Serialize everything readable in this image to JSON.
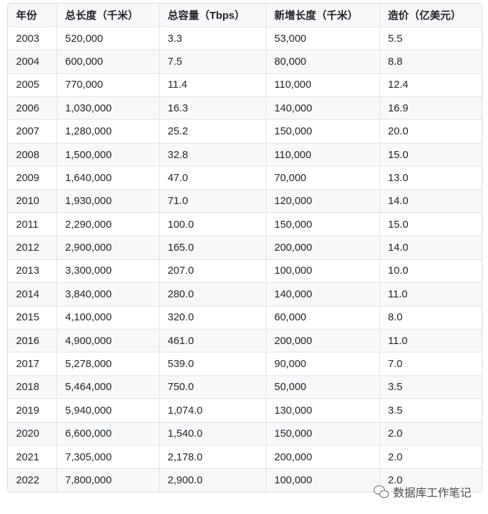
{
  "table": {
    "headers": [
      "年份",
      "总长度（千米）",
      "总容量（Tbps）",
      "新增长度（千米）",
      "造价（亿美元）"
    ],
    "rows": [
      [
        "2003",
        "520,000",
        "3.3",
        "53,000",
        "5.5"
      ],
      [
        "2004",
        "600,000",
        "7.5",
        "80,000",
        "8.8"
      ],
      [
        "2005",
        "770,000",
        "11.4",
        "110,000",
        "12.4"
      ],
      [
        "2006",
        "1,030,000",
        "16.3",
        "140,000",
        "16.9"
      ],
      [
        "2007",
        "1,280,000",
        "25.2",
        "150,000",
        "20.0"
      ],
      [
        "2008",
        "1,500,000",
        "32.8",
        "110,000",
        "15.0"
      ],
      [
        "2009",
        "1,640,000",
        "47.0",
        "70,000",
        "13.0"
      ],
      [
        "2010",
        "1,930,000",
        "71.0",
        "120,000",
        "14.0"
      ],
      [
        "2011",
        "2,290,000",
        "100.0",
        "150,000",
        "15.0"
      ],
      [
        "2012",
        "2,900,000",
        "165.0",
        "200,000",
        "14.0"
      ],
      [
        "2013",
        "3,300,000",
        "207.0",
        "100,000",
        "10.0"
      ],
      [
        "2014",
        "3,840,000",
        "280.0",
        "140,000",
        "11.0"
      ],
      [
        "2015",
        "4,100,000",
        "320.0",
        "60,000",
        "8.0"
      ],
      [
        "2016",
        "4,900,000",
        "461.0",
        "200,000",
        "11.0"
      ],
      [
        "2017",
        "5,278,000",
        "539.0",
        "90,000",
        "7.0"
      ],
      [
        "2018",
        "5,464,000",
        "750.0",
        "50,000",
        "3.5"
      ],
      [
        "2019",
        "5,940,000",
        "1,074.0",
        "130,000",
        "3.5"
      ],
      [
        "2020",
        "6,600,000",
        "1,540.0",
        "150,000",
        "2.0"
      ],
      [
        "2021",
        "7,305,000",
        "2,178.0",
        "200,000",
        "2.0"
      ],
      [
        "2022",
        "7,800,000",
        "2,900.0",
        "100,000",
        "2.0"
      ]
    ]
  },
  "watermark": {
    "text": "数据库工作笔记",
    "icon": "wechat-icon"
  }
}
